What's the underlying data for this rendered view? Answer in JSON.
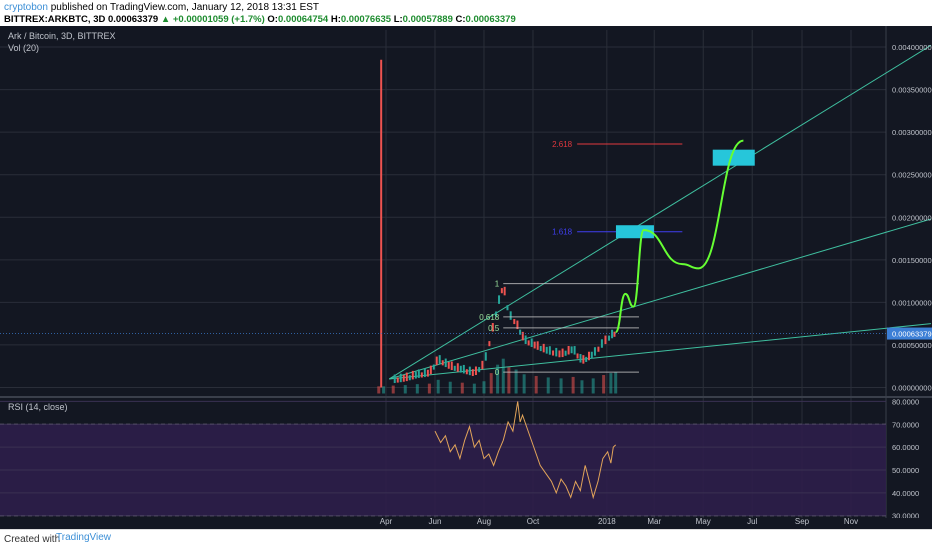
{
  "header": {
    "author": "cryptobon",
    "published": "published on TradingView.com, January 12, 2018 13:31 EST",
    "symbol": "BITTREX:ARKBTC, 3D",
    "last": "0.00063379",
    "change": "▲ +0.00001059 (+1.7%)",
    "o_label": "O:",
    "o": "0.00064754",
    "h_label": "H:",
    "h": "0.00076635",
    "l_label": "L:",
    "l": "0.00057889",
    "c_label": "C:",
    "c": "0.00063379"
  },
  "footer": {
    "created": "Created with",
    "brand": "TradingView"
  },
  "colors": {
    "bg": "#131722",
    "grid": "#2a2e39",
    "up": "#26a69a",
    "down": "#ef5350",
    "rsi_line": "#e2a45a",
    "rsi_band": "#2d1e4a",
    "projection": "#66ff33",
    "target": "#26c6da",
    "fib_red": "#e0383e",
    "fib_blue": "#3f3ff0",
    "trendline": "#3fbf9f",
    "axis_text": "#c0c4cc"
  },
  "chart_data": [
    {
      "type": "candlestick",
      "title": "Ark / Bitcoin, 3D, BITTREX",
      "indicator": "Vol (20)",
      "ylim": [
        -0.0001,
        0.0042
      ],
      "yticks": [
        "0.00000000",
        "0.00050000",
        "0.00100000",
        "0.00150000",
        "0.00200000",
        "0.00250000",
        "0.00300000",
        "0.00350000",
        "0.00400000"
      ],
      "ytick_values": [
        0,
        0.0005,
        0.001,
        0.0015,
        0.002,
        0.0025,
        0.003,
        0.0035,
        0.004
      ],
      "current_price_label": "0.00063379",
      "current_price": 0.00063379,
      "x_range": [
        "2017-03-20",
        "2017-12-10"
      ],
      "xticks": [
        "Apr",
        "Jun",
        "Aug",
        "Oct",
        "2018",
        "Mar",
        "May",
        "Jul",
        "Sep",
        "Nov"
      ],
      "xtick_dates": [
        "2017-04-01",
        "2017-06-01",
        "2017-08-01",
        "2017-10-01",
        "2018-01-01",
        "2018-03-01",
        "2018-05-01",
        "2018-07-01",
        "2018-09-01",
        "2018-11-01"
      ],
      "price_series": [
        {
          "date": "2017-03-23",
          "close": 5e-05
        },
        {
          "date": "2017-03-26",
          "close": 0.00385
        },
        {
          "date": "2017-03-29",
          "close": 5e-05
        },
        {
          "date": "2017-04-10",
          "close": 8e-05
        },
        {
          "date": "2017-04-25",
          "close": 0.0001
        },
        {
          "date": "2017-05-10",
          "close": 0.00014
        },
        {
          "date": "2017-05-25",
          "close": 0.00016
        },
        {
          "date": "2017-06-05",
          "close": 0.00032
        },
        {
          "date": "2017-06-20",
          "close": 0.00024
        },
        {
          "date": "2017-07-05",
          "close": 0.0002
        },
        {
          "date": "2017-07-20",
          "close": 0.00016
        },
        {
          "date": "2017-08-01",
          "close": 0.00026
        },
        {
          "date": "2017-08-10",
          "close": 0.0006
        },
        {
          "date": "2017-08-18",
          "close": 0.00095
        },
        {
          "date": "2017-08-25",
          "close": 0.0012
        },
        {
          "date": "2017-09-01",
          "close": 0.00085
        },
        {
          "date": "2017-09-10",
          "close": 0.00075
        },
        {
          "date": "2017-09-20",
          "close": 0.00055
        },
        {
          "date": "2017-10-05",
          "close": 0.00048
        },
        {
          "date": "2017-10-20",
          "close": 0.00042
        },
        {
          "date": "2017-11-05",
          "close": 0.00038
        },
        {
          "date": "2017-11-20",
          "close": 0.00044
        },
        {
          "date": "2017-12-01",
          "close": 0.0003
        },
        {
          "date": "2017-12-15",
          "close": 0.00038
        },
        {
          "date": "2017-12-28",
          "close": 0.00052
        },
        {
          "date": "2018-01-06",
          "close": 0.0006
        },
        {
          "date": "2018-01-12",
          "close": 0.00063379
        }
      ],
      "fib_retracement": {
        "levels": [
          {
            "label": "1",
            "price": 0.00122
          },
          {
            "label": "0.618",
            "price": 0.00083
          },
          {
            "label": "0.5",
            "price": 0.0007
          },
          {
            "label": "0",
            "price": 0.00018
          }
        ]
      },
      "fib_extension": [
        {
          "label": "2.618",
          "price": 0.00286
        },
        {
          "label": "1.618",
          "price": 0.00183
        }
      ],
      "targets": [
        {
          "price": 0.00183,
          "date": "2018-02-05"
        },
        {
          "price": 0.0027,
          "date": "2018-06-08"
        }
      ],
      "projection_path": [
        {
          "date": "2018-01-12",
          "price": 0.00065
        },
        {
          "date": "2018-01-24",
          "price": 0.0011
        },
        {
          "date": "2018-02-03",
          "price": 0.00095
        },
        {
          "date": "2018-02-16",
          "price": 0.00185
        },
        {
          "date": "2018-04-05",
          "price": 0.00145
        },
        {
          "date": "2018-04-25",
          "price": 0.0014
        },
        {
          "date": "2018-06-20",
          "price": 0.0029
        }
      ]
    },
    {
      "type": "line",
      "title": "RSI (14, close)",
      "ylim": [
        29,
        81.5
      ],
      "yticks": [
        "30.0000",
        "40.0000",
        "50.0000",
        "60.0000",
        "70.0000",
        "80.0000"
      ],
      "ytick_values": [
        30,
        40,
        50,
        60,
        70,
        80
      ],
      "bands": [
        30,
        70
      ],
      "series": [
        {
          "values": [
            {
              "date": "2017-06-01",
              "v": 67
            },
            {
              "date": "2017-06-08",
              "v": 62
            },
            {
              "date": "2017-06-14",
              "v": 65
            },
            {
              "date": "2017-06-20",
              "v": 58
            },
            {
              "date": "2017-06-26",
              "v": 61
            },
            {
              "date": "2017-07-02",
              "v": 55
            },
            {
              "date": "2017-07-08",
              "v": 63
            },
            {
              "date": "2017-07-14",
              "v": 69
            },
            {
              "date": "2017-07-20",
              "v": 60
            },
            {
              "date": "2017-07-26",
              "v": 63
            },
            {
              "date": "2017-08-01",
              "v": 55
            },
            {
              "date": "2017-08-07",
              "v": 57
            },
            {
              "date": "2017-08-13",
              "v": 52
            },
            {
              "date": "2017-08-19",
              "v": 58
            },
            {
              "date": "2017-08-25",
              "v": 63
            },
            {
              "date": "2017-08-31",
              "v": 71
            },
            {
              "date": "2017-09-06",
              "v": 67
            },
            {
              "date": "2017-09-12",
              "v": 80
            },
            {
              "date": "2017-09-15",
              "v": 71
            },
            {
              "date": "2017-09-18",
              "v": 74
            },
            {
              "date": "2017-09-24",
              "v": 68
            },
            {
              "date": "2017-10-02",
              "v": 60
            },
            {
              "date": "2017-10-10",
              "v": 52
            },
            {
              "date": "2017-10-18",
              "v": 48
            },
            {
              "date": "2017-10-24",
              "v": 45
            },
            {
              "date": "2017-10-30",
              "v": 40
            },
            {
              "date": "2017-11-05",
              "v": 46
            },
            {
              "date": "2017-11-11",
              "v": 43
            },
            {
              "date": "2017-11-17",
              "v": 38
            },
            {
              "date": "2017-11-23",
              "v": 45
            },
            {
              "date": "2017-11-29",
              "v": 41
            },
            {
              "date": "2017-12-05",
              "v": 52
            },
            {
              "date": "2017-12-11",
              "v": 44
            },
            {
              "date": "2017-12-15",
              "v": 38
            },
            {
              "date": "2017-12-21",
              "v": 45
            },
            {
              "date": "2017-12-27",
              "v": 55
            },
            {
              "date": "2018-01-02",
              "v": 58
            },
            {
              "date": "2018-01-06",
              "v": 53
            },
            {
              "date": "2018-01-09",
              "v": 60
            },
            {
              "date": "2018-01-12",
              "v": 61
            }
          ]
        }
      ]
    }
  ]
}
